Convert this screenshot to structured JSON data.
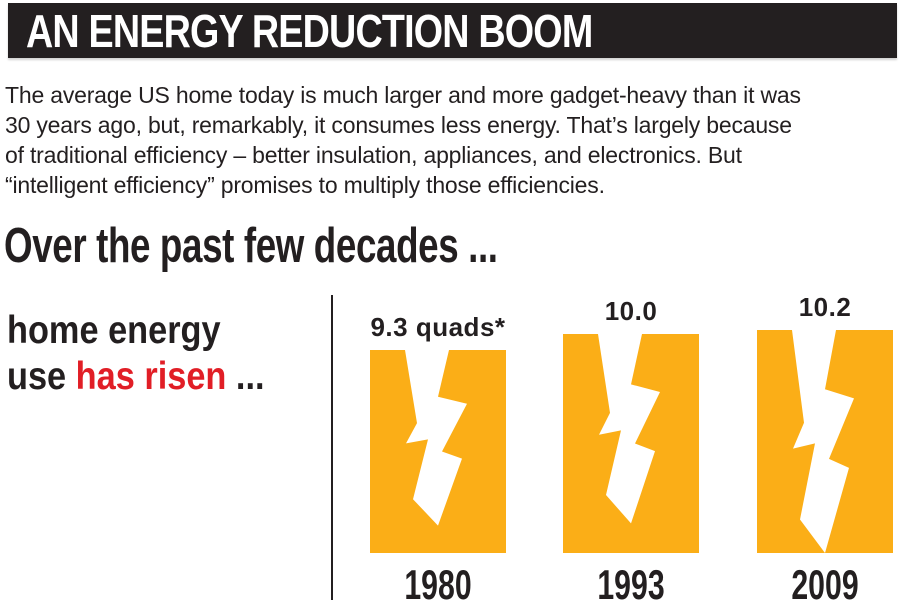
{
  "colors": {
    "ink": "#231F20",
    "title_bg": "#231F20",
    "title_text": "#FFFFFF",
    "bar_orange": "#FBAE17",
    "highlight_red": "#E11E26",
    "bolt_white": "#FFFFFF"
  },
  "header": {
    "title": "AN ENERGY REDUCTION BOOM"
  },
  "intro": {
    "lines": [
      "The average US home today is much larger and more gadget-heavy than it was",
      "30 years ago, but, remarkably, it consumes less energy. That’s largely because",
      "of traditional efficiency – better insulation, appliances, and electronics. But",
      "“intelligent efficiency” promises to multiply those efficiencies."
    ]
  },
  "section": {
    "heading": "Over the past few decades ..."
  },
  "chart_label": {
    "line1": "home energy",
    "line2_prefix": "use ",
    "line2_highlight": "has risen",
    "line2_suffix": " ..."
  },
  "chart_data": {
    "type": "bar",
    "categories": [
      "1980",
      "1993",
      "2009"
    ],
    "values": [
      9.3,
      10.0,
      10.2
    ],
    "value_labels": [
      "9.3 quads*",
      "10.0",
      "10.2"
    ],
    "unit": "quads",
    "note_marker": "*",
    "icon": "lightning-bolt",
    "bar_color": "#FBAE17",
    "ylim": [
      0,
      10.2
    ],
    "axes": "none",
    "grid": false,
    "legend": "none"
  }
}
